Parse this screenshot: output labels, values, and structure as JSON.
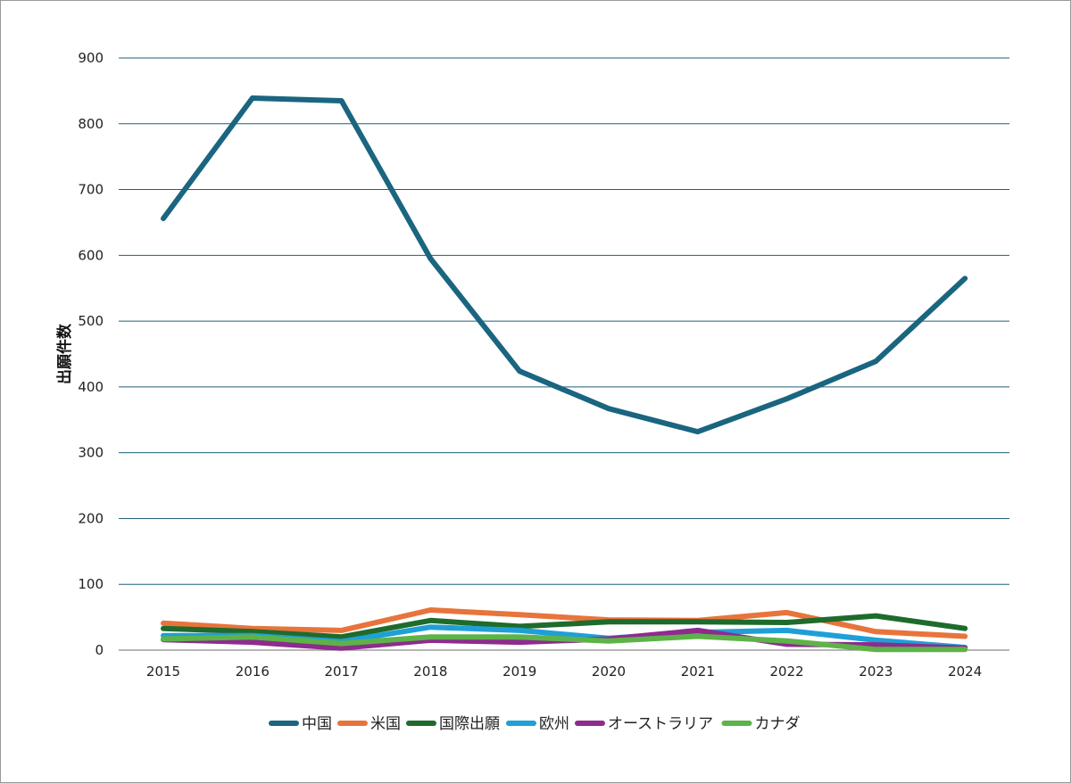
{
  "chart_data": {
    "type": "line",
    "title": "",
    "xlabel": "",
    "ylabel": "出願件数",
    "ylim": [
      0,
      900
    ],
    "yticks": [
      0,
      100,
      200,
      300,
      400,
      500,
      600,
      700,
      800,
      900
    ],
    "grid": "horizontal",
    "legend_position": "bottom",
    "categories": [
      "2015",
      "2016",
      "2017",
      "2018",
      "2019",
      "2020",
      "2021",
      "2022",
      "2023",
      "2024"
    ],
    "series": [
      {
        "name": "中国",
        "color": "#1a6580",
        "values": [
          656,
          839,
          835,
          595,
          424,
          367,
          332,
          382,
          439,
          565
        ]
      },
      {
        "name": "米国",
        "color": "#e8743b",
        "values": [
          41,
          33,
          30,
          61,
          54,
          46,
          45,
          57,
          28,
          21
        ]
      },
      {
        "name": "国際出願",
        "color": "#1e6b2c",
        "values": [
          33,
          28,
          20,
          45,
          36,
          43,
          43,
          42,
          52,
          33
        ]
      },
      {
        "name": "欧州",
        "color": "#1ea0d7",
        "values": [
          22,
          22,
          13,
          35,
          30,
          18,
          27,
          30,
          15,
          4
        ]
      },
      {
        "name": "オーストラリア",
        "color": "#8e2b8e",
        "values": [
          16,
          12,
          3,
          15,
          12,
          17,
          30,
          9,
          8,
          3
        ]
      },
      {
        "name": "カナダ",
        "color": "#5db348",
        "values": [
          17,
          20,
          10,
          20,
          20,
          14,
          21,
          14,
          1,
          1
        ]
      }
    ]
  }
}
